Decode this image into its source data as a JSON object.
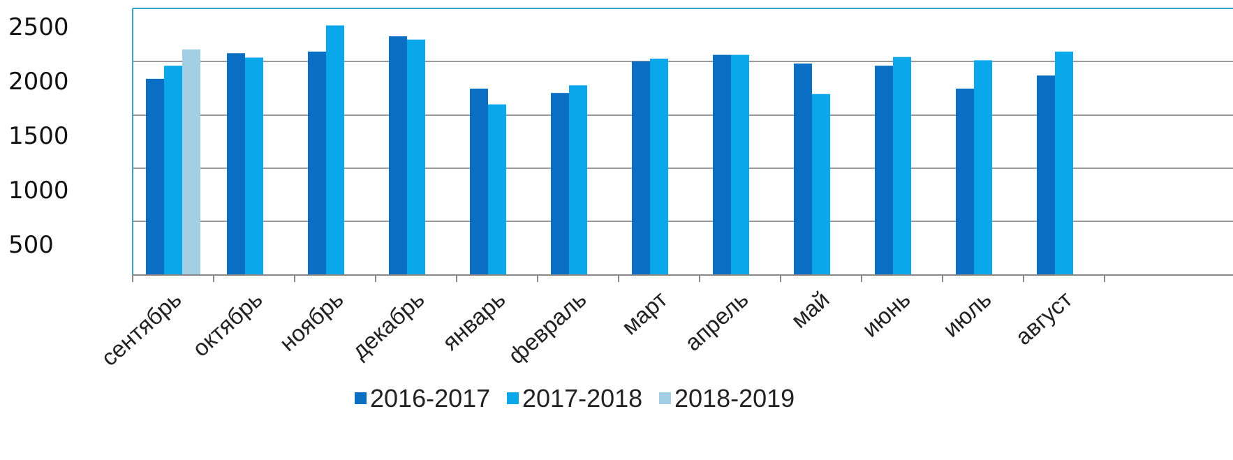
{
  "chart_data": {
    "type": "bar",
    "title": "",
    "xlabel": "",
    "ylabel": "",
    "categories": [
      "сентябрь",
      "октябрь",
      "ноябрь",
      "декабрь",
      "январь",
      "февраль",
      "март",
      "апрель",
      "май",
      "июнь",
      "июль",
      "август"
    ],
    "series": [
      {
        "name": "2016-2017",
        "color": "#0a6fc2",
        "values": [
          2020,
          2255,
          2270,
          2410,
          1930,
          1890,
          2180,
          2240,
          2160,
          2140,
          1930,
          2050
        ]
      },
      {
        "name": "2017-2018",
        "color": "#0aa8ea",
        "values": [
          2140,
          2215,
          2510,
          2380,
          1785,
          1960,
          2205,
          2240,
          1880,
          2220,
          2190,
          2270
        ]
      },
      {
        "name": "2018-2019",
        "color": "#a3cfe4",
        "values": [
          2290,
          null,
          null,
          null,
          null,
          null,
          null,
          null,
          null,
          null,
          null,
          null
        ]
      }
    ],
    "ylim": [
      0,
      2500
    ],
    "yticks": [
      2500,
      2000,
      1500,
      1000,
      500
    ],
    "gridlines": true,
    "legend_position": "bottom-center",
    "colors": {
      "axis": "#888888",
      "grid": "#999999",
      "frame": "#36a6c8"
    }
  }
}
